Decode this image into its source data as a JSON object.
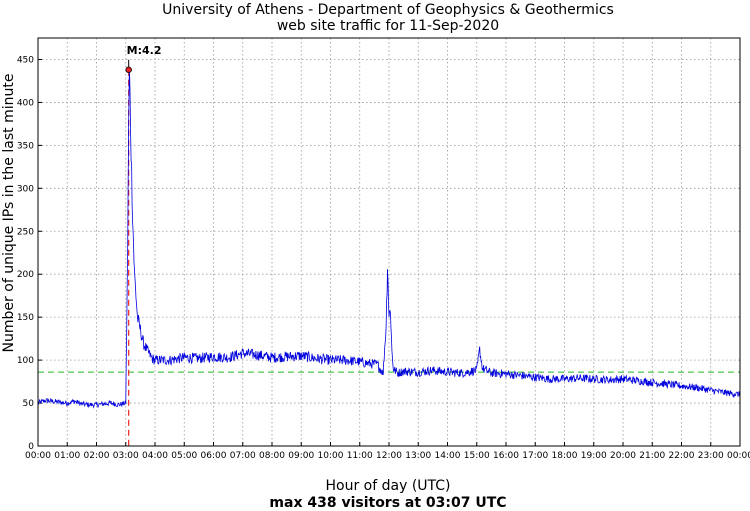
{
  "chart_data": {
    "type": "line",
    "title": "University of Athens - Department of Geophysics & Geothermics",
    "subtitle": "web site traffic for 11-Sep-2020",
    "xlabel": "Hour of day (UTC)",
    "footer": "max 438 visitors at 03:07 UTC",
    "ylabel": "Number of unique IPs in the last minute",
    "xlim": [
      0,
      24
    ],
    "ylim": [
      0,
      475
    ],
    "x_ticks": [
      "00:00",
      "01:00",
      "02:00",
      "03:00",
      "04:00",
      "05:00",
      "06:00",
      "07:00",
      "08:00",
      "09:00",
      "10:00",
      "11:00",
      "12:00",
      "13:00",
      "14:00",
      "15:00",
      "16:00",
      "17:00",
      "18:00",
      "19:00",
      "20:00",
      "21:00",
      "22:00",
      "23:00",
      "00:00"
    ],
    "y_ticks": [
      0,
      50,
      100,
      150,
      200,
      250,
      300,
      350,
      400,
      450
    ],
    "grid": true,
    "series": [
      {
        "color": "#0000dd",
        "x": [
          0,
          0.25,
          0.5,
          0.75,
          1.0,
          1.25,
          1.5,
          1.75,
          2.0,
          2.25,
          2.5,
          2.75,
          3.0,
          3.05,
          3.08,
          3.12,
          3.15,
          3.2,
          3.25,
          3.3,
          3.35,
          3.4,
          3.5,
          3.6,
          3.75,
          3.9,
          4.0,
          4.5,
          5.0,
          5.5,
          6.0,
          6.5,
          7.0,
          7.5,
          8.0,
          8.5,
          9.0,
          9.5,
          10.0,
          10.5,
          11.0,
          11.3,
          11.6,
          11.8,
          11.9,
          11.95,
          12.0,
          12.05,
          12.1,
          12.15,
          12.2,
          12.3,
          12.5,
          13.0,
          13.5,
          14.0,
          14.5,
          15.0,
          15.1,
          15.2,
          15.5,
          16.0,
          16.5,
          17.0,
          17.5,
          18.0,
          18.5,
          19.0,
          19.5,
          20.0,
          20.5,
          21.0,
          21.5,
          22.0,
          22.5,
          23.0,
          23.5,
          24.0
        ],
        "y": [
          50,
          53,
          52,
          51,
          50,
          52,
          49,
          48,
          48,
          49,
          50,
          48,
          50,
          180,
          300,
          438,
          400,
          320,
          250,
          200,
          175,
          150,
          135,
          120,
          110,
          102,
          100,
          100,
          103,
          102,
          104,
          103,
          108,
          106,
          103,
          104,
          105,
          102,
          100,
          100,
          98,
          96,
          95,
          85,
          140,
          213,
          150,
          160,
          110,
          90,
          88,
          85,
          87,
          86,
          88,
          86,
          85,
          88,
          112,
          90,
          85,
          84,
          82,
          80,
          78,
          78,
          79,
          78,
          77,
          78,
          76,
          74,
          72,
          70,
          68,
          65,
          62,
          60
        ]
      }
    ],
    "baseline_level": 86,
    "baseline_color": "#22bb22",
    "event_x": 3.1,
    "event_color": "#ee2222",
    "event_label": "M:4.2",
    "max_value": 438
  }
}
